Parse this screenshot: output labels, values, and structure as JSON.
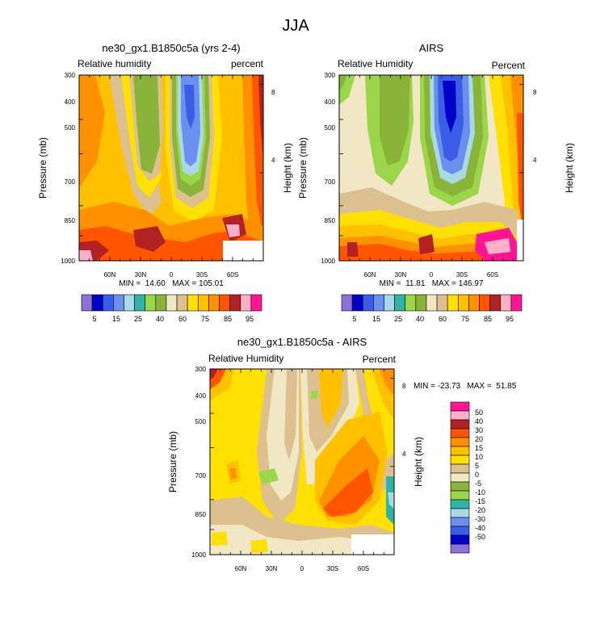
{
  "figure_title": "JJA",
  "colors": {
    "rh_palette": [
      "#8f6fd8",
      "#0000c8",
      "#3c5ee6",
      "#6a8fee",
      "#a8d9e4",
      "#2fb5a8",
      "#9bd64a",
      "#8ab33a",
      "#f2e7c4",
      "#dcc090",
      "#ffe000",
      "#ffc000",
      "#ff9000",
      "#ff5500",
      "#b22222",
      "#ffb0c8",
      "#ff1493"
    ],
    "diff_palette": [
      "#8f6fd8",
      "#0000c8",
      "#3c5ee6",
      "#6a8fee",
      "#a8d9e4",
      "#2fb5a8",
      "#9bd64a",
      "#8ab33a",
      "#f2e7c4",
      "#dcc090",
      "#ffe000",
      "#ffc000",
      "#ff9000",
      "#ff5500",
      "#b22222",
      "#ffb0c8",
      "#ff1493"
    ]
  },
  "panels": [
    {
      "title": "ne30_gx1.B1850c5a (yrs 2-4)",
      "left_label": "Relative humidity",
      "right_label": "percent",
      "ylabel": "Pressure (mb)",
      "ylabel_right": "Height (km)",
      "minmax": "MIN =  14.60   MAX = 105.01"
    },
    {
      "title": "AIRS",
      "left_label": "Relative Humidity",
      "right_label": "Percent",
      "ylabel": "Pressure (mb)",
      "ylabel_right": "Height (km)",
      "minmax": "MIN =  11.81   MAX = 146.97"
    },
    {
      "title": "ne30_gx1.B1850c5a - AIRS",
      "left_label": "Relative Humidity",
      "right_label": "Percent",
      "ylabel": "Pressure (mb)",
      "ylabel_right": "Height (km)",
      "minmax": "MIN = -23.73   MAX =  51.85"
    }
  ],
  "colorbar_h": {
    "labels": [
      "5",
      "15",
      "25",
      "40",
      "60",
      "75",
      "85",
      "95"
    ]
  },
  "colorbar_v": {
    "labels": [
      "50",
      "40",
      "30",
      "20",
      "15",
      "10",
      "5",
      "0",
      "-5",
      "-10",
      "-15",
      "-20",
      "-30",
      "-40",
      "-50"
    ]
  },
  "chart_data": [
    {
      "type": "heatmap",
      "title": "ne30_gx1.B1850c5a (yrs 2-4)",
      "xlabel": "",
      "ylabel": "Pressure (mb)",
      "y2label": "Height (km)",
      "x_ticks": [
        "60N",
        "30N",
        "0",
        "30S",
        "60S"
      ],
      "y_ticks": [
        "300",
        "400",
        "500",
        "700",
        "850",
        "1000"
      ],
      "y2_ticks": [
        "8",
        "4"
      ],
      "xlim": [
        90,
        -90
      ],
      "ylim": [
        1000,
        300
      ],
      "levels": [
        5,
        10,
        15,
        20,
        25,
        30,
        40,
        50,
        60,
        70,
        75,
        80,
        85,
        90,
        95,
        100
      ],
      "min": 14.6,
      "max": 105.01
    },
    {
      "type": "heatmap",
      "title": "AIRS",
      "xlabel": "",
      "ylabel": "Pressure (mb)",
      "y2label": "Height (km)",
      "x_ticks": [
        "60N",
        "30N",
        "0",
        "30S",
        "60S"
      ],
      "y_ticks": [
        "300",
        "400",
        "500",
        "700",
        "850",
        "1000"
      ],
      "y2_ticks": [
        "8",
        "4"
      ],
      "xlim": [
        90,
        -90
      ],
      "ylim": [
        1000,
        300
      ],
      "levels": [
        5,
        10,
        15,
        20,
        25,
        30,
        40,
        50,
        60,
        70,
        75,
        80,
        85,
        90,
        95,
        100
      ],
      "min": 11.81,
      "max": 146.97
    },
    {
      "type": "heatmap",
      "title": "ne30_gx1.B1850c5a - AIRS",
      "xlabel": "",
      "ylabel": "Pressure (mb)",
      "y2label": "Height (km)",
      "x_ticks": [
        "60N",
        "30N",
        "0",
        "30S",
        "60S"
      ],
      "y_ticks": [
        "300",
        "400",
        "500",
        "700",
        "850",
        "1000"
      ],
      "y2_ticks": [
        "8",
        "4"
      ],
      "xlim": [
        90,
        -90
      ],
      "ylim": [
        1000,
        300
      ],
      "levels": [
        -50,
        -40,
        -30,
        -20,
        -15,
        -10,
        -5,
        0,
        5,
        10,
        15,
        20,
        30,
        40,
        50
      ],
      "min": -23.73,
      "max": 51.85
    }
  ]
}
